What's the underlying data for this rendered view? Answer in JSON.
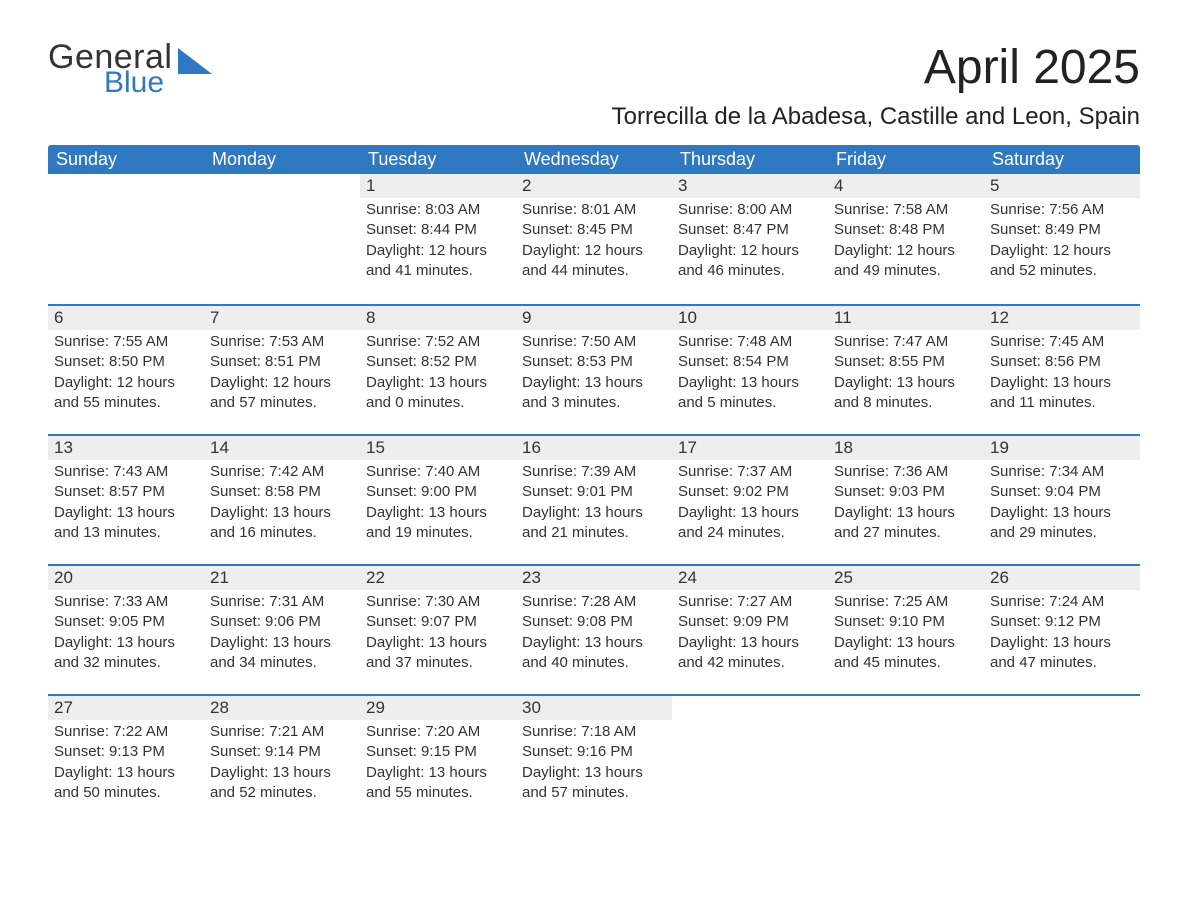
{
  "brand": {
    "word1": "General",
    "word2": "Blue"
  },
  "title": "April 2025",
  "subtitle": "Torrecilla de la Abadesa, Castille and Leon, Spain",
  "colors": {
    "header_bg": "#2f79c2",
    "daynum_bg": "#eeeeee",
    "row_border": "#2f79c2",
    "brand_blue": "#2f79c2",
    "text": "#222222"
  },
  "weekdays": [
    "Sunday",
    "Monday",
    "Tuesday",
    "Wednesday",
    "Thursday",
    "Friday",
    "Saturday"
  ],
  "weeks": [
    [
      {
        "day": "",
        "sunrise": "",
        "sunset": "",
        "daylight": ""
      },
      {
        "day": "",
        "sunrise": "",
        "sunset": "",
        "daylight": ""
      },
      {
        "day": "1",
        "sunrise": "Sunrise: 8:03 AM",
        "sunset": "Sunset: 8:44 PM",
        "daylight": "Daylight: 12 hours and 41 minutes."
      },
      {
        "day": "2",
        "sunrise": "Sunrise: 8:01 AM",
        "sunset": "Sunset: 8:45 PM",
        "daylight": "Daylight: 12 hours and 44 minutes."
      },
      {
        "day": "3",
        "sunrise": "Sunrise: 8:00 AM",
        "sunset": "Sunset: 8:47 PM",
        "daylight": "Daylight: 12 hours and 46 minutes."
      },
      {
        "day": "4",
        "sunrise": "Sunrise: 7:58 AM",
        "sunset": "Sunset: 8:48 PM",
        "daylight": "Daylight: 12 hours and 49 minutes."
      },
      {
        "day": "5",
        "sunrise": "Sunrise: 7:56 AM",
        "sunset": "Sunset: 8:49 PM",
        "daylight": "Daylight: 12 hours and 52 minutes."
      }
    ],
    [
      {
        "day": "6",
        "sunrise": "Sunrise: 7:55 AM",
        "sunset": "Sunset: 8:50 PM",
        "daylight": "Daylight: 12 hours and 55 minutes."
      },
      {
        "day": "7",
        "sunrise": "Sunrise: 7:53 AM",
        "sunset": "Sunset: 8:51 PM",
        "daylight": "Daylight: 12 hours and 57 minutes."
      },
      {
        "day": "8",
        "sunrise": "Sunrise: 7:52 AM",
        "sunset": "Sunset: 8:52 PM",
        "daylight": "Daylight: 13 hours and 0 minutes."
      },
      {
        "day": "9",
        "sunrise": "Sunrise: 7:50 AM",
        "sunset": "Sunset: 8:53 PM",
        "daylight": "Daylight: 13 hours and 3 minutes."
      },
      {
        "day": "10",
        "sunrise": "Sunrise: 7:48 AM",
        "sunset": "Sunset: 8:54 PM",
        "daylight": "Daylight: 13 hours and 5 minutes."
      },
      {
        "day": "11",
        "sunrise": "Sunrise: 7:47 AM",
        "sunset": "Sunset: 8:55 PM",
        "daylight": "Daylight: 13 hours and 8 minutes."
      },
      {
        "day": "12",
        "sunrise": "Sunrise: 7:45 AM",
        "sunset": "Sunset: 8:56 PM",
        "daylight": "Daylight: 13 hours and 11 minutes."
      }
    ],
    [
      {
        "day": "13",
        "sunrise": "Sunrise: 7:43 AM",
        "sunset": "Sunset: 8:57 PM",
        "daylight": "Daylight: 13 hours and 13 minutes."
      },
      {
        "day": "14",
        "sunrise": "Sunrise: 7:42 AM",
        "sunset": "Sunset: 8:58 PM",
        "daylight": "Daylight: 13 hours and 16 minutes."
      },
      {
        "day": "15",
        "sunrise": "Sunrise: 7:40 AM",
        "sunset": "Sunset: 9:00 PM",
        "daylight": "Daylight: 13 hours and 19 minutes."
      },
      {
        "day": "16",
        "sunrise": "Sunrise: 7:39 AM",
        "sunset": "Sunset: 9:01 PM",
        "daylight": "Daylight: 13 hours and 21 minutes."
      },
      {
        "day": "17",
        "sunrise": "Sunrise: 7:37 AM",
        "sunset": "Sunset: 9:02 PM",
        "daylight": "Daylight: 13 hours and 24 minutes."
      },
      {
        "day": "18",
        "sunrise": "Sunrise: 7:36 AM",
        "sunset": "Sunset: 9:03 PM",
        "daylight": "Daylight: 13 hours and 27 minutes."
      },
      {
        "day": "19",
        "sunrise": "Sunrise: 7:34 AM",
        "sunset": "Sunset: 9:04 PM",
        "daylight": "Daylight: 13 hours and 29 minutes."
      }
    ],
    [
      {
        "day": "20",
        "sunrise": "Sunrise: 7:33 AM",
        "sunset": "Sunset: 9:05 PM",
        "daylight": "Daylight: 13 hours and 32 minutes."
      },
      {
        "day": "21",
        "sunrise": "Sunrise: 7:31 AM",
        "sunset": "Sunset: 9:06 PM",
        "daylight": "Daylight: 13 hours and 34 minutes."
      },
      {
        "day": "22",
        "sunrise": "Sunrise: 7:30 AM",
        "sunset": "Sunset: 9:07 PM",
        "daylight": "Daylight: 13 hours and 37 minutes."
      },
      {
        "day": "23",
        "sunrise": "Sunrise: 7:28 AM",
        "sunset": "Sunset: 9:08 PM",
        "daylight": "Daylight: 13 hours and 40 minutes."
      },
      {
        "day": "24",
        "sunrise": "Sunrise: 7:27 AM",
        "sunset": "Sunset: 9:09 PM",
        "daylight": "Daylight: 13 hours and 42 minutes."
      },
      {
        "day": "25",
        "sunrise": "Sunrise: 7:25 AM",
        "sunset": "Sunset: 9:10 PM",
        "daylight": "Daylight: 13 hours and 45 minutes."
      },
      {
        "day": "26",
        "sunrise": "Sunrise: 7:24 AM",
        "sunset": "Sunset: 9:12 PM",
        "daylight": "Daylight: 13 hours and 47 minutes."
      }
    ],
    [
      {
        "day": "27",
        "sunrise": "Sunrise: 7:22 AM",
        "sunset": "Sunset: 9:13 PM",
        "daylight": "Daylight: 13 hours and 50 minutes."
      },
      {
        "day": "28",
        "sunrise": "Sunrise: 7:21 AM",
        "sunset": "Sunset: 9:14 PM",
        "daylight": "Daylight: 13 hours and 52 minutes."
      },
      {
        "day": "29",
        "sunrise": "Sunrise: 7:20 AM",
        "sunset": "Sunset: 9:15 PM",
        "daylight": "Daylight: 13 hours and 55 minutes."
      },
      {
        "day": "30",
        "sunrise": "Sunrise: 7:18 AM",
        "sunset": "Sunset: 9:16 PM",
        "daylight": "Daylight: 13 hours and 57 minutes."
      },
      {
        "day": "",
        "sunrise": "",
        "sunset": "",
        "daylight": ""
      },
      {
        "day": "",
        "sunrise": "",
        "sunset": "",
        "daylight": ""
      },
      {
        "day": "",
        "sunrise": "",
        "sunset": "",
        "daylight": ""
      }
    ]
  ]
}
